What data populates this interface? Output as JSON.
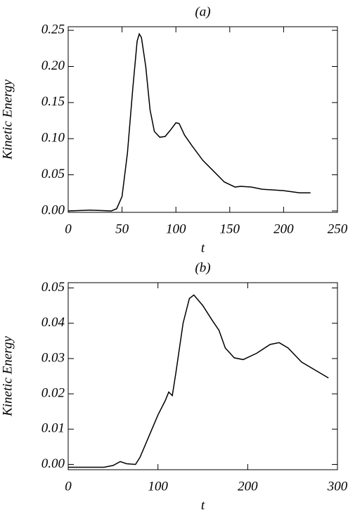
{
  "chart_data": [
    {
      "type": "line",
      "title": "(a)",
      "x_label": "t",
      "y_label": "Kinetic Energy",
      "color": "#000000",
      "x": [
        0,
        20,
        30,
        40,
        45,
        50,
        55,
        60,
        64,
        66,
        68,
        72,
        76,
        80,
        85,
        90,
        95,
        100,
        103,
        108,
        115,
        125,
        135,
        145,
        155,
        160,
        170,
        180,
        200,
        215,
        225
      ],
      "values": [
        0,
        0.001,
        0.0005,
        0,
        0.003,
        0.02,
        0.08,
        0.17,
        0.235,
        0.245,
        0.24,
        0.2,
        0.14,
        0.11,
        0.102,
        0.103,
        0.112,
        0.122,
        0.121,
        0.105,
        0.09,
        0.07,
        0.055,
        0.04,
        0.033,
        0.034,
        0.033,
        0.03,
        0.028,
        0.025,
        0.025
      ],
      "xlim": [
        0,
        250
      ],
      "xticks": [
        0,
        50,
        100,
        150,
        200,
        250
      ],
      "ylim": [
        -0.002,
        0.255
      ],
      "yticks": [
        {
          "value": 0,
          "label": "0.00"
        },
        {
          "value": 0.05,
          "label": "0.05"
        },
        {
          "value": 0.1,
          "label": "0.10"
        },
        {
          "value": 0.15,
          "label": "0.15"
        },
        {
          "value": 0.2,
          "label": "0.20"
        },
        {
          "value": 0.25,
          "label": "0.25"
        }
      ]
    },
    {
      "type": "line",
      "title": "(b)",
      "x_label": "t",
      "y_label": "Kinetic Energy",
      "color": "#000000",
      "x": [
        0,
        40,
        50,
        58,
        65,
        75,
        80,
        90,
        100,
        108,
        112,
        116,
        120,
        128,
        135,
        140,
        150,
        160,
        168,
        175,
        185,
        195,
        210,
        225,
        235,
        245,
        260,
        280,
        290
      ],
      "values": [
        -0.0008,
        -0.0008,
        -0.0003,
        0.0008,
        0.0002,
        0,
        0.002,
        0.008,
        0.014,
        0.018,
        0.0205,
        0.0195,
        0.026,
        0.04,
        0.047,
        0.048,
        0.045,
        0.041,
        0.038,
        0.033,
        0.0302,
        0.0297,
        0.0315,
        0.034,
        0.0345,
        0.033,
        0.029,
        0.026,
        0.0245
      ],
      "xlim": [
        0,
        300
      ],
      "xticks": [
        0,
        100,
        200,
        300
      ],
      "ylim": [
        -0.0015,
        0.0515
      ],
      "yticks": [
        {
          "value": 0,
          "label": "0.00"
        },
        {
          "value": 0.01,
          "label": "0.01"
        },
        {
          "value": 0.02,
          "label": "0.02"
        },
        {
          "value": 0.03,
          "label": "0.03"
        },
        {
          "value": 0.04,
          "label": "0.04"
        },
        {
          "value": 0.05,
          "label": "0.05"
        }
      ]
    }
  ]
}
